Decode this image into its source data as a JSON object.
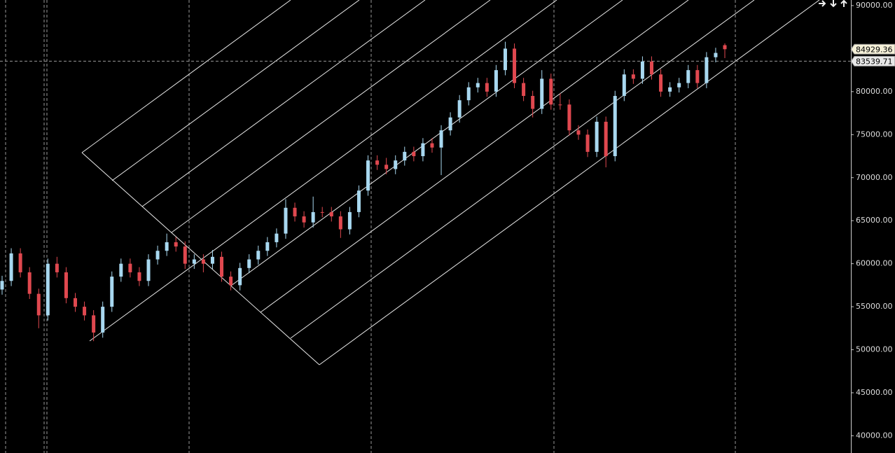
{
  "chart_data": {
    "type": "candlestick",
    "up_color": "#a8d8f0",
    "down_color": "#e0484f",
    "ylim": [
      38000,
      90650
    ],
    "yticks": [
      {
        "value": 40000,
        "label": "40000.00"
      },
      {
        "value": 45000,
        "label": "45000.00"
      },
      {
        "value": 50000,
        "label": "50000.00"
      },
      {
        "value": 55000,
        "label": "55000.00"
      },
      {
        "value": 60000,
        "label": "60000.00"
      },
      {
        "value": 65000,
        "label": "65000.00"
      },
      {
        "value": 70000,
        "label": "70000.00"
      },
      {
        "value": 75000,
        "label": "75000.00"
      },
      {
        "value": 80000,
        "label": "80000.00"
      },
      {
        "value": 90000,
        "label": "90000.00"
      }
    ],
    "last_price": {
      "value": 84929.36,
      "label": "84929.36"
    },
    "crosshair_price": {
      "value": 83539.71,
      "label": "83539.71"
    },
    "open": [
      57000,
      58000,
      61200,
      59000,
      56500,
      54000,
      60000,
      59000,
      56000,
      55000,
      54000,
      52000,
      55000,
      58500,
      60000,
      59000,
      58000,
      60500,
      61500,
      62500,
      62000,
      60000,
      60500,
      60000,
      60800,
      58500,
      57500,
      59500,
      60500,
      61500,
      62500,
      63500,
      66500,
      65500,
      64800,
      66000,
      66000,
      65500,
      64000,
      66000,
      68500,
      72000,
      71500,
      71000,
      72000,
      73000,
      72500,
      74000,
      73500,
      75500,
      77000,
      79000,
      80500,
      81000,
      80000,
      82500,
      85000,
      81000,
      79500,
      78000,
      81500,
      78500,
      78500,
      75500,
      75000,
      73000,
      76500,
      72500,
      79500,
      82000,
      81500,
      83500,
      82000,
      80000,
      80500,
      81000,
      82500,
      81000,
      84000,
      85400
    ],
    "high": [
      58600,
      61800,
      61800,
      59600,
      57100,
      60600,
      60800,
      59600,
      56600,
      55600,
      54600,
      55600,
      59100,
      60600,
      60600,
      59600,
      61100,
      62100,
      63500,
      63100,
      62600,
      61100,
      61100,
      61600,
      61400,
      59100,
      60100,
      61100,
      62100,
      63100,
      64100,
      67500,
      67100,
      66100,
      67800,
      66600,
      66600,
      66100,
      66600,
      69100,
      72600,
      72600,
      72300,
      72600,
      73600,
      73600,
      74600,
      74600,
      76100,
      77600,
      79600,
      81100,
      81600,
      81600,
      83100,
      85800,
      85600,
      81600,
      80100,
      82500,
      82100,
      79800,
      79100,
      76100,
      75600,
      77100,
      77100,
      80100,
      82600,
      82600,
      84100,
      84100,
      82600,
      81100,
      81600,
      83100,
      83100,
      84600,
      85100,
      85600
    ],
    "low": [
      56400,
      57400,
      58400,
      55900,
      52500,
      53400,
      58400,
      55400,
      54400,
      53400,
      51000,
      51400,
      54400,
      57900,
      58400,
      57400,
      57400,
      59900,
      60900,
      61400,
      59400,
      59400,
      59000,
      59400,
      57900,
      56900,
      56900,
      58900,
      59900,
      60900,
      61900,
      62900,
      64900,
      64200,
      64200,
      65400,
      64900,
      63000,
      63400,
      65400,
      67900,
      70900,
      70400,
      70400,
      71400,
      71900,
      71900,
      72900,
      70300,
      74900,
      76400,
      78400,
      79900,
      79400,
      79400,
      81900,
      80400,
      78900,
      77000,
      77400,
      77900,
      77900,
      74900,
      74400,
      72400,
      72400,
      71200,
      71900,
      78900,
      80900,
      80900,
      81400,
      79400,
      79400,
      79900,
      80400,
      80400,
      80400,
      83400,
      83900
    ],
    "close": [
      58000,
      61200,
      59000,
      56500,
      54000,
      60000,
      59000,
      56000,
      55000,
      54000,
      52000,
      55000,
      58500,
      60000,
      59000,
      58000,
      60500,
      61500,
      62500,
      62000,
      60000,
      60500,
      60000,
      60800,
      58500,
      57500,
      59500,
      60500,
      61500,
      62500,
      63500,
      66500,
      65500,
      64800,
      66000,
      66000,
      65500,
      64000,
      66000,
      68500,
      72000,
      71500,
      71000,
      72000,
      73000,
      72500,
      74000,
      73500,
      75500,
      77000,
      79000,
      80500,
      81000,
      80000,
      82500,
      85000,
      81000,
      79500,
      78000,
      81500,
      78500,
      78500,
      75500,
      75000,
      73000,
      76500,
      72500,
      79500,
      82000,
      81500,
      83500,
      82000,
      80000,
      80500,
      81000,
      82500,
      81000,
      84000,
      84500,
      84929.36
    ]
  }
}
